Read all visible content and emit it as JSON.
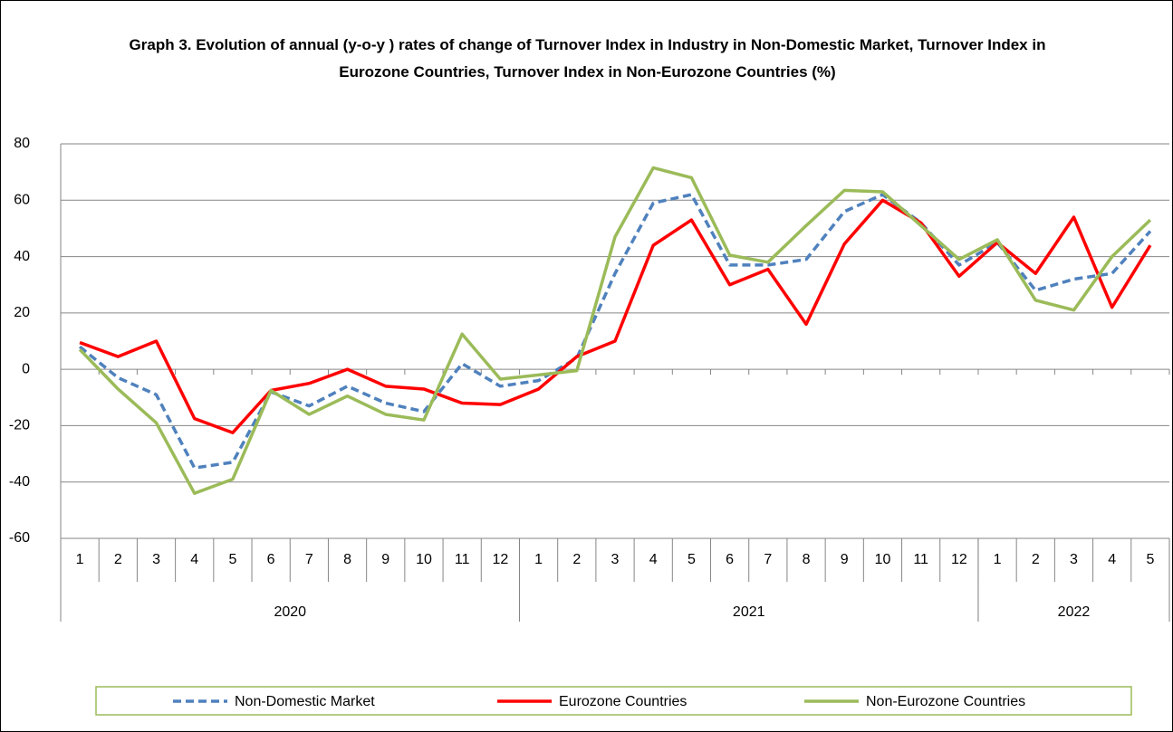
{
  "chart_data": {
    "type": "line",
    "title": "Graph 3. Evolution of annual (y-o-y ) rates of change of Turnover Index in Industry in Non-Domestic Market, Turnover Index in Eurozone Countries, Turnover Index in Non-Eurozone Countries (%)",
    "groups": [
      {
        "name": "2020",
        "categories": [
          "1",
          "2",
          "3",
          "4",
          "5",
          "6",
          "7",
          "8",
          "9",
          "10",
          "11",
          "12"
        ]
      },
      {
        "name": "2021",
        "categories": [
          "1",
          "2",
          "3",
          "4",
          "5",
          "6",
          "7",
          "8",
          "9",
          "10",
          "11",
          "12"
        ]
      },
      {
        "name": "2022",
        "categories": [
          "1",
          "2",
          "3",
          "4",
          "5"
        ]
      }
    ],
    "series": [
      {
        "name": "Non-Domestic Market",
        "color": "#4f81bd",
        "dashed": true,
        "values": [
          8,
          -3,
          -9,
          -35,
          -33,
          -8,
          -13,
          -6,
          -12,
          -15,
          2,
          -6,
          -4,
          4,
          34,
          59,
          62,
          37,
          37,
          39,
          56,
          62,
          52,
          37,
          45,
          28,
          32,
          34,
          49
        ]
      },
      {
        "name": "Eurozone Countries",
        "color": "#ff0000",
        "dashed": false,
        "values": [
          9.5,
          4.5,
          10,
          -17.5,
          -22.5,
          -7.5,
          -5,
          0,
          -6,
          -7,
          -12,
          -12.5,
          -7,
          4.5,
          10,
          44,
          53,
          30,
          35.5,
          16,
          44.5,
          60,
          52,
          33,
          45,
          34,
          54,
          22,
          44
        ]
      },
      {
        "name": "Non-Eurozone Countries",
        "color": "#9bbb59",
        "dashed": false,
        "values": [
          7,
          -7,
          -19,
          -44,
          -39,
          -7.5,
          -16,
          -9.5,
          -16,
          -18,
          12.5,
          -3.5,
          -2,
          -0.5,
          47,
          71.5,
          68,
          40.5,
          38,
          51,
          63.5,
          63,
          51,
          39,
          46,
          24.5,
          21,
          40,
          53
        ]
      }
    ],
    "ylim": [
      -60,
      80
    ],
    "yticks": [
      -60,
      -40,
      -20,
      0,
      20,
      40,
      60,
      80
    ],
    "grid": true,
    "legend": "bottom"
  }
}
